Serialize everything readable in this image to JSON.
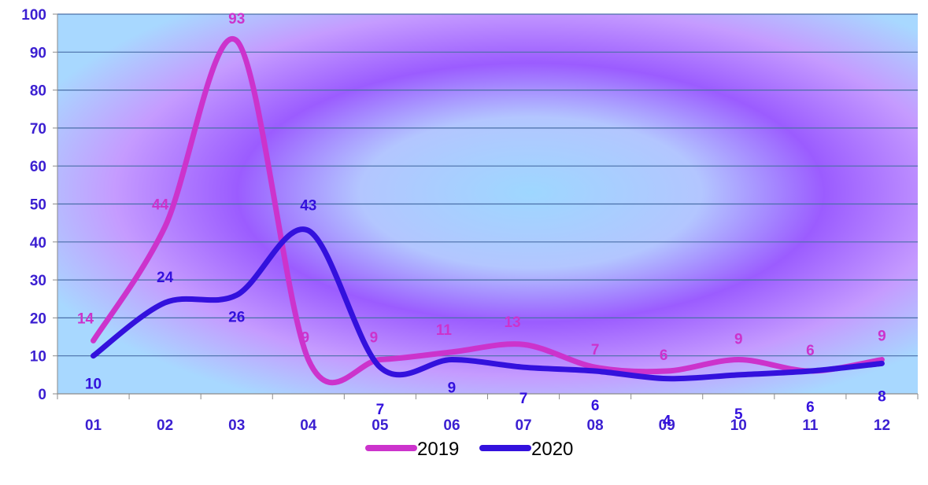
{
  "colors": {
    "series_2019": "#cc33cc",
    "series_2020": "#3311dd",
    "tick_text": "#3b1fd1",
    "gridline": "#4a6fa8",
    "axis": "#8a8a8a",
    "background_center": "#9ed7ff",
    "background_mid": "#9b5cff",
    "background_edge": "#a8d8ff"
  },
  "chart_data": {
    "type": "line",
    "categories": [
      "01",
      "02",
      "03",
      "04",
      "05",
      "06",
      "07",
      "08",
      "09",
      "10",
      "11",
      "12"
    ],
    "series": [
      {
        "name": "2019",
        "values": [
          14,
          44,
          93,
          9,
          9,
          11,
          13,
          7,
          6,
          9,
          6,
          9
        ]
      },
      {
        "name": "2020",
        "values": [
          10,
          24,
          26,
          43,
          7,
          9,
          7,
          6,
          4,
          5,
          6,
          8
        ]
      }
    ],
    "ylim": [
      0,
      100
    ],
    "yticks": [
      0,
      10,
      20,
      30,
      40,
      50,
      60,
      70,
      80,
      90,
      100
    ],
    "smooth": true,
    "grid": true,
    "legend_position": "bottom",
    "title": "",
    "xlabel": "",
    "ylabel": ""
  }
}
